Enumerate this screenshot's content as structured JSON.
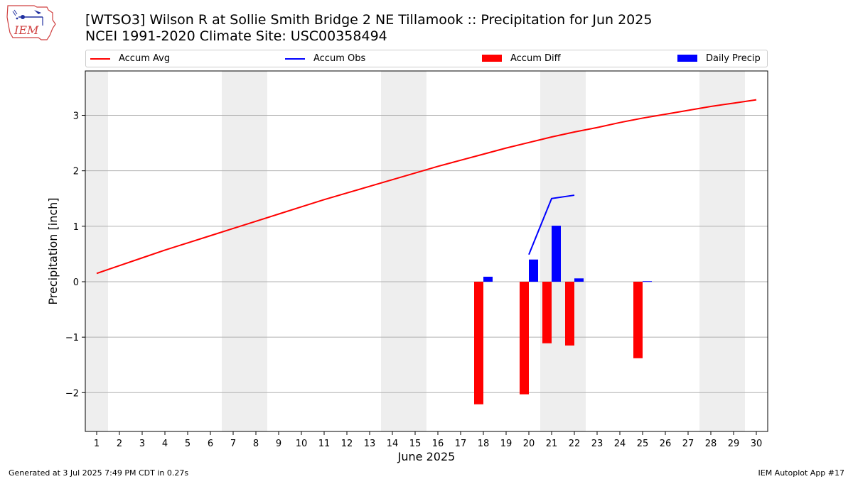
{
  "header": {
    "title": "[WTSO3] Wilson R at Sollie Smith Bridge 2 NE Tillamook :: Precipitation for Jun 2025",
    "subtitle": "NCEI 1991-2020 Climate Site: USC00358494",
    "logo_text": "IEM"
  },
  "footer": {
    "generated": "Generated at 3 Jul 2025 7:49 PM CDT in 0.27s",
    "app": "IEM Autoplot App #17"
  },
  "colors": {
    "accum_avg": "#ff0000",
    "accum_obs": "#0000ff",
    "accum_diff": "#ff0000",
    "daily_precip": "#0000ff",
    "weekend_shade": "#eeeeee",
    "grid": "#b0b0b0"
  },
  "chart_data": {
    "type": "bar",
    "title": "[WTSO3] Wilson R at Sollie Smith Bridge 2 NE Tillamook :: Precipitation for Jun 2025",
    "subtitle": "NCEI 1991-2020 Climate Site: USC00358494",
    "xlabel": "June 2025",
    "ylabel": "Precipitation [inch]",
    "xlim": [
      0.5,
      30.5
    ],
    "ylim": [
      -2.7,
      3.8
    ],
    "x_ticks": [
      1,
      2,
      3,
      4,
      5,
      6,
      7,
      8,
      9,
      10,
      11,
      12,
      13,
      14,
      15,
      16,
      17,
      18,
      19,
      20,
      21,
      22,
      23,
      24,
      25,
      26,
      27,
      28,
      29,
      30
    ],
    "y_ticks": [
      -2,
      -1,
      0,
      1,
      2,
      3
    ],
    "y_tick_labels": [
      "−2",
      "−1",
      "0",
      "1",
      "2",
      "3"
    ],
    "grid": "horizontal",
    "legend_placement": "top, above plot",
    "weekend_shading": [
      [
        0.5,
        1.5
      ],
      [
        6.5,
        8.5
      ],
      [
        13.5,
        15.5
      ],
      [
        20.5,
        22.5
      ],
      [
        27.5,
        29.5
      ]
    ],
    "series": [
      {
        "name": "Accum Avg",
        "kind": "line",
        "x": [
          1,
          2,
          3,
          4,
          5,
          6,
          7,
          8,
          9,
          10,
          11,
          12,
          13,
          14,
          15,
          16,
          17,
          18,
          19,
          20,
          21,
          22,
          23,
          24,
          25,
          26,
          27,
          28,
          29,
          30
        ],
        "values": [
          0.15,
          0.29,
          0.43,
          0.57,
          0.7,
          0.83,
          0.96,
          1.09,
          1.22,
          1.35,
          1.48,
          1.6,
          1.72,
          1.84,
          1.96,
          2.08,
          2.19,
          2.3,
          2.41,
          2.51,
          2.61,
          2.7,
          2.78,
          2.87,
          2.95,
          3.02,
          3.09,
          3.16,
          3.22,
          3.28
        ]
      },
      {
        "name": "Accum Obs",
        "kind": "line",
        "x": [
          20,
          21,
          22
        ],
        "values": [
          0.49,
          1.5,
          1.56
        ]
      },
      {
        "name": "Accum Diff",
        "kind": "bar",
        "x": [
          18,
          20,
          21,
          22,
          25
        ],
        "values": [
          -2.21,
          -2.03,
          -1.11,
          -1.15,
          -1.38
        ]
      },
      {
        "name": "Daily Precip",
        "kind": "bar",
        "x": [
          18,
          20,
          21,
          22,
          25
        ],
        "values": [
          0.09,
          0.4,
          1.01,
          0.06,
          0.01
        ]
      }
    ]
  }
}
